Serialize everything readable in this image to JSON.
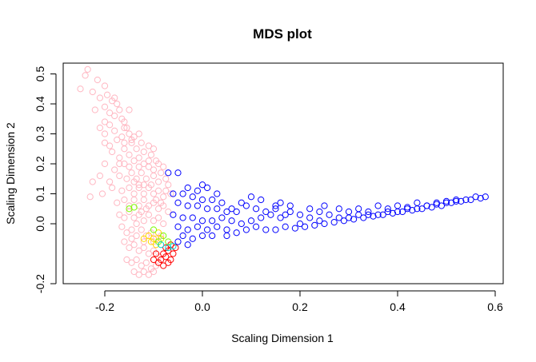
{
  "chart_data": {
    "type": "scatter",
    "title": "MDS plot",
    "xlabel": "Scaling Dimension 1",
    "ylabel": "Scaling Dimension 2",
    "xlim": [
      -0.28,
      0.6
    ],
    "ylim": [
      -0.2,
      0.54
    ],
    "x_ticks": [
      -0.2,
      0.0,
      0.2,
      0.4,
      0.6
    ],
    "x_tick_labels": [
      "-0.2",
      "0.0",
      "0.2",
      "0.4",
      "0.6"
    ],
    "y_ticks": [
      -0.2,
      0.0,
      0.1,
      0.2,
      0.3,
      0.4,
      0.5
    ],
    "y_tick_labels": [
      "-0.2",
      "0.0",
      "0.1",
      "0.2",
      "0.3",
      "0.4",
      "0.5"
    ],
    "grid": false,
    "marker": "open-circle",
    "series": [
      {
        "color": "#ffb6c1",
        "points": [
          [
            -0.235,
            0.515
          ],
          [
            -0.24,
            0.495
          ],
          [
            -0.25,
            0.45
          ],
          [
            -0.225,
            0.44
          ],
          [
            -0.215,
            0.48
          ],
          [
            -0.2,
            0.46
          ],
          [
            -0.21,
            0.42
          ],
          [
            -0.195,
            0.43
          ],
          [
            -0.185,
            0.41
          ],
          [
            -0.2,
            0.39
          ],
          [
            -0.19,
            0.37
          ],
          [
            -0.175,
            0.4
          ],
          [
            -0.18,
            0.36
          ],
          [
            -0.17,
            0.38
          ],
          [
            -0.165,
            0.35
          ],
          [
            -0.21,
            0.32
          ],
          [
            -0.2,
            0.3
          ],
          [
            -0.19,
            0.33
          ],
          [
            -0.18,
            0.31
          ],
          [
            -0.16,
            0.34
          ],
          [
            -0.155,
            0.32
          ],
          [
            -0.2,
            0.27
          ],
          [
            -0.19,
            0.26
          ],
          [
            -0.175,
            0.28
          ],
          [
            -0.165,
            0.29
          ],
          [
            -0.15,
            0.3
          ],
          [
            -0.145,
            0.27
          ],
          [
            -0.14,
            0.29
          ],
          [
            -0.185,
            0.24
          ],
          [
            -0.17,
            0.22
          ],
          [
            -0.16,
            0.25
          ],
          [
            -0.15,
            0.23
          ],
          [
            -0.135,
            0.25
          ],
          [
            -0.13,
            0.22
          ],
          [
            -0.12,
            0.24
          ],
          [
            -0.125,
            0.27
          ],
          [
            -0.11,
            0.26
          ],
          [
            -0.105,
            0.23
          ],
          [
            -0.1,
            0.25
          ],
          [
            -0.095,
            0.21
          ],
          [
            -0.16,
            0.2
          ],
          [
            -0.15,
            0.19
          ],
          [
            -0.14,
            0.21
          ],
          [
            -0.13,
            0.19
          ],
          [
            -0.12,
            0.2
          ],
          [
            -0.11,
            0.19
          ],
          [
            -0.09,
            0.2
          ],
          [
            -0.08,
            0.19
          ],
          [
            -0.085,
            0.17
          ],
          [
            -0.2,
            0.2
          ],
          [
            -0.21,
            0.16
          ],
          [
            -0.19,
            0.14
          ],
          [
            -0.225,
            0.14
          ],
          [
            -0.23,
            0.09
          ],
          [
            -0.205,
            0.1
          ],
          [
            -0.185,
            0.12
          ],
          [
            -0.17,
            0.16
          ],
          [
            -0.155,
            0.15
          ],
          [
            -0.145,
            0.17
          ],
          [
            -0.135,
            0.15
          ],
          [
            -0.125,
            0.17
          ],
          [
            -0.115,
            0.15
          ],
          [
            -0.1,
            0.16
          ],
          [
            -0.09,
            0.14
          ],
          [
            -0.075,
            0.15
          ],
          [
            -0.07,
            0.13
          ],
          [
            -0.165,
            0.11
          ],
          [
            -0.15,
            0.12
          ],
          [
            -0.14,
            0.1
          ],
          [
            -0.13,
            0.12
          ],
          [
            -0.12,
            0.1
          ],
          [
            -0.11,
            0.12
          ],
          [
            -0.1,
            0.1
          ],
          [
            -0.09,
            0.11
          ],
          [
            -0.08,
            0.09
          ],
          [
            -0.175,
            0.07
          ],
          [
            -0.16,
            0.08
          ],
          [
            -0.15,
            0.06
          ],
          [
            -0.14,
            0.08
          ],
          [
            -0.13,
            0.06
          ],
          [
            -0.12,
            0.08
          ],
          [
            -0.11,
            0.06
          ],
          [
            -0.1,
            0.07
          ],
          [
            -0.09,
            0.05
          ],
          [
            -0.08,
            0.06
          ],
          [
            -0.07,
            0.04
          ],
          [
            -0.17,
            0.03
          ],
          [
            -0.16,
            0.02
          ],
          [
            -0.15,
            0.04
          ],
          [
            -0.14,
            0.02
          ],
          [
            -0.13,
            0.03
          ],
          [
            -0.12,
            0.01
          ],
          [
            -0.11,
            0.03
          ],
          [
            -0.1,
            0.01
          ],
          [
            -0.09,
            0.02
          ],
          [
            -0.08,
            0.0
          ],
          [
            -0.165,
            -0.01
          ],
          [
            -0.155,
            -0.03
          ],
          [
            -0.145,
            -0.02
          ],
          [
            -0.135,
            -0.04
          ],
          [
            -0.125,
            -0.02
          ],
          [
            -0.115,
            -0.04
          ],
          [
            -0.105,
            -0.03
          ],
          [
            -0.095,
            -0.05
          ],
          [
            -0.085,
            -0.04
          ],
          [
            -0.16,
            -0.06
          ],
          [
            -0.15,
            -0.08
          ],
          [
            -0.14,
            -0.07
          ],
          [
            -0.13,
            -0.09
          ],
          [
            -0.12,
            -0.08
          ],
          [
            -0.11,
            -0.1
          ],
          [
            -0.1,
            -0.09
          ],
          [
            -0.09,
            -0.11
          ],
          [
            -0.155,
            -0.12
          ],
          [
            -0.145,
            -0.13
          ],
          [
            -0.135,
            -0.12
          ],
          [
            -0.125,
            -0.14
          ],
          [
            -0.115,
            -0.13
          ],
          [
            -0.105,
            -0.15
          ],
          [
            -0.095,
            -0.14
          ],
          [
            -0.14,
            -0.16
          ],
          [
            -0.13,
            -0.17
          ],
          [
            -0.12,
            -0.16
          ],
          [
            -0.11,
            -0.17
          ],
          [
            -0.1,
            -0.16
          ],
          [
            -0.145,
            0.28
          ],
          [
            -0.16,
            0.27
          ],
          [
            -0.17,
            0.2
          ],
          [
            -0.18,
            0.18
          ],
          [
            -0.14,
            0.14
          ],
          [
            -0.13,
            0.13
          ],
          [
            -0.12,
            0.13
          ],
          [
            -0.105,
            0.13
          ],
          [
            -0.095,
            0.08
          ],
          [
            -0.085,
            0.07
          ],
          [
            -0.125,
            0.04
          ],
          [
            -0.115,
            0.05
          ],
          [
            -0.135,
            0.0
          ],
          [
            -0.145,
            -0.05
          ],
          [
            -0.12,
            -0.06
          ],
          [
            -0.1,
            -0.06
          ],
          [
            -0.16,
            0.32
          ],
          [
            -0.13,
            0.3
          ],
          [
            -0.15,
            0.38
          ],
          [
            -0.18,
            0.42
          ],
          [
            -0.22,
            0.38
          ],
          [
            -0.2,
            0.34
          ],
          [
            -0.11,
            0.21
          ],
          [
            -0.1,
            0.18
          ],
          [
            -0.075,
            0.11
          ],
          [
            -0.065,
            0.1
          ]
        ]
      },
      {
        "color": "#0000ff",
        "points": [
          [
            -0.07,
            0.17
          ],
          [
            -0.05,
            0.17
          ],
          [
            0.0,
            0.13
          ],
          [
            0.01,
            0.12
          ],
          [
            -0.03,
            0.12
          ],
          [
            -0.06,
            0.1
          ],
          [
            -0.04,
            0.1
          ],
          [
            -0.02,
            0.09
          ],
          [
            0.0,
            0.08
          ],
          [
            0.02,
            0.08
          ],
          [
            0.04,
            0.07
          ],
          [
            -0.05,
            0.07
          ],
          [
            -0.03,
            0.06
          ],
          [
            -0.01,
            0.06
          ],
          [
            0.01,
            0.05
          ],
          [
            0.03,
            0.05
          ],
          [
            0.05,
            0.04
          ],
          [
            0.07,
            0.04
          ],
          [
            0.09,
            0.06
          ],
          [
            0.11,
            0.05
          ],
          [
            -0.06,
            0.03
          ],
          [
            -0.04,
            0.02
          ],
          [
            -0.02,
            0.02
          ],
          [
            0.0,
            0.01
          ],
          [
            0.02,
            0.01
          ],
          [
            0.04,
            0.02
          ],
          [
            0.06,
            0.01
          ],
          [
            0.08,
            0.0
          ],
          [
            0.1,
            0.01
          ],
          [
            0.12,
            0.02
          ],
          [
            -0.05,
            -0.01
          ],
          [
            -0.03,
            -0.02
          ],
          [
            -0.01,
            -0.01
          ],
          [
            0.01,
            -0.02
          ],
          [
            0.03,
            -0.01
          ],
          [
            0.05,
            -0.02
          ],
          [
            -0.04,
            -0.04
          ],
          [
            -0.02,
            -0.05
          ],
          [
            0.0,
            -0.04
          ],
          [
            0.02,
            -0.04
          ],
          [
            -0.05,
            -0.06
          ],
          [
            -0.03,
            -0.07
          ],
          [
            0.12,
            0.08
          ],
          [
            0.15,
            0.06
          ],
          [
            0.14,
            0.03
          ],
          [
            0.16,
            0.02
          ],
          [
            0.18,
            0.04
          ],
          [
            0.2,
            0.03
          ],
          [
            0.22,
            0.02
          ],
          [
            0.24,
            0.04
          ],
          [
            0.26,
            0.03
          ],
          [
            0.28,
            0.05
          ],
          [
            0.3,
            0.04
          ],
          [
            0.32,
            0.05
          ],
          [
            0.34,
            0.04
          ],
          [
            0.36,
            0.06
          ],
          [
            0.38,
            0.05
          ],
          [
            0.4,
            0.06
          ],
          [
            0.42,
            0.05
          ],
          [
            0.44,
            0.07
          ],
          [
            0.46,
            0.06
          ],
          [
            0.48,
            0.07
          ],
          [
            0.5,
            0.07
          ],
          [
            0.52,
            0.08
          ],
          [
            0.54,
            0.08
          ],
          [
            0.56,
            0.09
          ],
          [
            0.58,
            0.09
          ],
          [
            0.57,
            0.085
          ],
          [
            0.55,
            0.08
          ],
          [
            0.53,
            0.075
          ],
          [
            0.51,
            0.07
          ],
          [
            0.49,
            0.06
          ],
          [
            0.47,
            0.055
          ],
          [
            0.45,
            0.05
          ],
          [
            0.43,
            0.045
          ],
          [
            0.41,
            0.04
          ],
          [
            0.39,
            0.035
          ],
          [
            0.37,
            0.03
          ],
          [
            0.35,
            0.025
          ],
          [
            0.33,
            0.02
          ],
          [
            0.31,
            0.015
          ],
          [
            0.29,
            0.01
          ],
          [
            0.27,
            0.005
          ],
          [
            0.25,
            0.0
          ],
          [
            0.23,
            -0.005
          ],
          [
            0.21,
            -0.01
          ],
          [
            0.19,
            -0.015
          ],
          [
            0.17,
            -0.01
          ],
          [
            0.15,
            -0.02
          ],
          [
            0.13,
            -0.02
          ],
          [
            0.11,
            -0.01
          ],
          [
            0.09,
            -0.02
          ],
          [
            0.07,
            -0.03
          ],
          [
            0.05,
            -0.04
          ],
          [
            0.16,
            0.07
          ],
          [
            0.18,
            0.06
          ],
          [
            0.22,
            0.05
          ],
          [
            0.25,
            0.06
          ],
          [
            0.28,
            0.02
          ],
          [
            0.32,
            0.03
          ],
          [
            0.36,
            0.03
          ],
          [
            0.4,
            0.04
          ],
          [
            0.44,
            0.05
          ],
          [
            0.48,
            0.065
          ],
          [
            0.52,
            0.075
          ],
          [
            0.2,
            0.0
          ],
          [
            0.24,
            0.01
          ],
          [
            0.3,
            0.02
          ],
          [
            0.34,
            0.03
          ],
          [
            0.38,
            0.04
          ],
          [
            0.42,
            0.055
          ],
          [
            0.46,
            0.06
          ],
          [
            0.5,
            0.075
          ],
          [
            0.06,
            0.05
          ],
          [
            0.08,
            0.07
          ],
          [
            0.1,
            0.09
          ],
          [
            0.03,
            0.1
          ],
          [
            -0.01,
            0.11
          ],
          [
            0.13,
            0.04
          ],
          [
            0.15,
            0.05
          ],
          [
            0.17,
            0.03
          ]
        ]
      },
      {
        "color": "#ff0000",
        "points": [
          [
            -0.09,
            -0.13
          ],
          [
            -0.08,
            -0.14
          ],
          [
            -0.07,
            -0.13
          ],
          [
            -0.085,
            -0.12
          ],
          [
            -0.075,
            -0.11
          ],
          [
            -0.065,
            -0.12
          ],
          [
            -0.08,
            -0.1
          ],
          [
            -0.07,
            -0.09
          ],
          [
            -0.06,
            -0.1
          ],
          [
            -0.075,
            -0.08
          ],
          [
            -0.065,
            -0.07
          ],
          [
            -0.055,
            -0.08
          ],
          [
            -0.1,
            -0.12
          ],
          [
            -0.095,
            -0.1
          ]
        ]
      },
      {
        "color": "#ffd700",
        "points": [
          [
            -0.11,
            -0.04
          ],
          [
            -0.1,
            -0.05
          ],
          [
            -0.09,
            -0.03
          ],
          [
            -0.105,
            -0.06
          ],
          [
            -0.095,
            -0.07
          ],
          [
            -0.085,
            -0.05
          ],
          [
            -0.12,
            -0.05
          ]
        ]
      },
      {
        "color": "#7cfc00",
        "points": [
          [
            -0.15,
            0.05
          ],
          [
            -0.14,
            0.055
          ],
          [
            -0.1,
            -0.02
          ],
          [
            -0.09,
            -0.06
          ],
          [
            -0.08,
            -0.04
          ],
          [
            -0.07,
            -0.06
          ]
        ]
      },
      {
        "color": "#00ced1",
        "points": [
          [
            -0.06,
            -0.075
          ],
          [
            -0.07,
            -0.08
          ],
          [
            -0.085,
            -0.07
          ]
        ]
      }
    ]
  }
}
